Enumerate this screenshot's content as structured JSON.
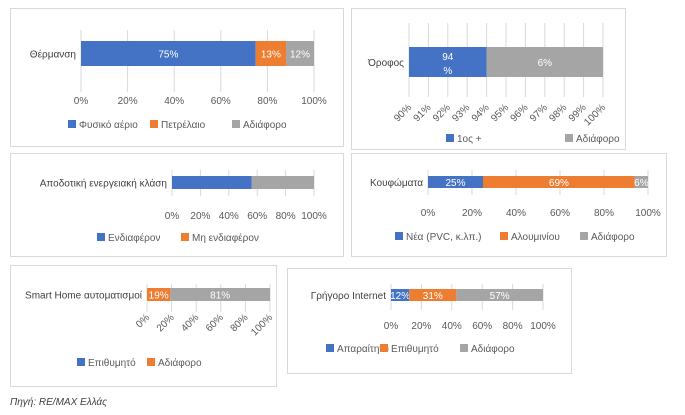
{
  "colors": {
    "blue": "#4472c4",
    "orange": "#ed7d31",
    "gray": "#a5a5a5"
  },
  "chart_data": [
    {
      "type": "bar",
      "orientation": "horizontal",
      "stacked": true,
      "category": "Θέρμανση",
      "xlim": [
        0,
        100
      ],
      "ticks": [
        "0%",
        "20%",
        "40%",
        "60%",
        "80%",
        "100%"
      ],
      "segments": [
        {
          "value": 75,
          "label": "75%",
          "color": "#4472c4"
        },
        {
          "value": 13,
          "label": "13%",
          "color": "#ed7d31"
        },
        {
          "value": 12,
          "label": "12%",
          "color": "#a5a5a5"
        }
      ],
      "legend": [
        {
          "name": "Φυσικό αέριο",
          "color": "#4472c4"
        },
        {
          "name": "Πετρέλαιο",
          "color": "#ed7d31"
        },
        {
          "name": "Αδιάφορο",
          "color": "#a5a5a5"
        }
      ],
      "grid": true,
      "legend_position": "bottom"
    },
    {
      "type": "bar",
      "orientation": "horizontal",
      "stacked": true,
      "category": "Όροφος",
      "xlim": [
        90,
        100
      ],
      "ticks": [
        "90%",
        "91%",
        "92%",
        "93%",
        "94%",
        "95%",
        "96%",
        "97%",
        "98%",
        "99%",
        "100%"
      ],
      "segments": [
        {
          "value": 94,
          "label": "94 %",
          "color": "#4472c4"
        },
        {
          "value": 6,
          "label": "6%",
          "color": "#a5a5a5"
        }
      ],
      "legend": [
        {
          "name": "1ος +",
          "color": "#4472c4"
        },
        {
          "name": "Αδιάφορο",
          "color": "#a5a5a5"
        }
      ],
      "grid": true,
      "legend_position": "bottom"
    },
    {
      "type": "bar",
      "orientation": "horizontal",
      "stacked": true,
      "category": "Αποδοτική ενεργειακή κλάση",
      "xlim": [
        0,
        100
      ],
      "ticks": [
        "0%",
        "20%",
        "40%",
        "60%",
        "80%",
        "100%"
      ],
      "segments": [
        {
          "value": 56,
          "label": "",
          "color": "#4472c4"
        },
        {
          "value": 44,
          "label": "",
          "color": "#a5a5a5"
        }
      ],
      "legend": [
        {
          "name": "Ενδιαφέρον",
          "color": "#4472c4"
        },
        {
          "name": "Μη ενδιαφέρον",
          "color": "#ed7d31"
        }
      ],
      "grid": true,
      "legend_position": "bottom"
    },
    {
      "type": "bar",
      "orientation": "horizontal",
      "stacked": true,
      "category": "Κουφώματα",
      "xlim": [
        0,
        100
      ],
      "ticks": [
        "0%",
        "20%",
        "40%",
        "60%",
        "80%",
        "100%"
      ],
      "segments": [
        {
          "value": 25,
          "label": "25%",
          "color": "#4472c4"
        },
        {
          "value": 69,
          "label": "69%",
          "color": "#ed7d31"
        },
        {
          "value": 6,
          "label": "6%",
          "color": "#a5a5a5"
        }
      ],
      "legend": [
        {
          "name": "Νέα (PVC, κ.λπ.)",
          "color": "#4472c4"
        },
        {
          "name": "Αλουμινίου",
          "color": "#ed7d31"
        },
        {
          "name": "Αδιάφορο",
          "color": "#a5a5a5"
        }
      ],
      "grid": true,
      "legend_position": "bottom"
    },
    {
      "type": "bar",
      "orientation": "horizontal",
      "stacked": true,
      "category": "Smart Home αυτοματισμοί",
      "xlim": [
        0,
        100
      ],
      "ticks": [
        "0%",
        "20%",
        "40%",
        "60%",
        "80%",
        "100%"
      ],
      "segments": [
        {
          "value": 19,
          "label": "19%",
          "color": "#ed7d31"
        },
        {
          "value": 81,
          "label": "81%",
          "color": "#a5a5a5"
        }
      ],
      "legend": [
        {
          "name": "Επιθυμητό",
          "color": "#4472c4"
        },
        {
          "name": "Αδιάφορο",
          "color": "#ed7d31"
        }
      ],
      "grid": true,
      "legend_position": "bottom"
    },
    {
      "type": "bar",
      "orientation": "horizontal",
      "stacked": true,
      "category": "Γρήγορο Internet",
      "xlim": [
        0,
        100
      ],
      "ticks": [
        "0%",
        "20%",
        "40%",
        "60%",
        "80%",
        "100%"
      ],
      "segments": [
        {
          "value": 12,
          "label": "12%",
          "color": "#4472c4"
        },
        {
          "value": 31,
          "label": "31%",
          "color": "#ed7d31"
        },
        {
          "value": 57,
          "label": "57%",
          "color": "#a5a5a5"
        }
      ],
      "legend": [
        {
          "name": "Απαραίτητο",
          "color": "#4472c4"
        },
        {
          "name": "Επιθυμητό",
          "color": "#ed7d31"
        },
        {
          "name": "Αδιάφορο",
          "color": "#a5a5a5"
        }
      ],
      "grid": true,
      "legend_position": "bottom"
    }
  ],
  "source": "Πηγή: RE/MAX Ελλάς"
}
